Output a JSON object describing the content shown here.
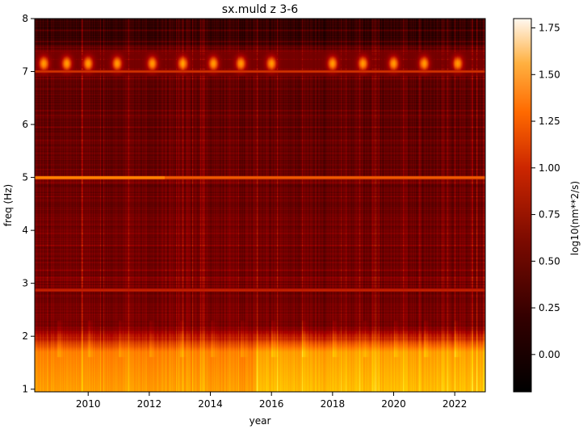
{
  "chart_data": {
    "type": "heatmap",
    "title": "sx.muld z 3-6",
    "xlabel": "year",
    "ylabel": "freq (Hz)",
    "colorbar_label": "log10(nm**2/s)",
    "colormap": "gist_heat",
    "xlim": [
      2008.25,
      2023.0
    ],
    "ylim": [
      0.95,
      8.0
    ],
    "x_ticks": [
      2010,
      2012,
      2014,
      2016,
      2018,
      2020,
      2022
    ],
    "y_ticks": [
      1,
      2,
      3,
      4,
      5,
      6,
      7,
      8
    ],
    "colorbar_range": [
      -0.2,
      1.8
    ],
    "colorbar_ticks": [
      0.0,
      0.25,
      0.5,
      0.75,
      1.0,
      1.25,
      1.5,
      1.75
    ],
    "colorbar_tick_labels": [
      "0.00",
      "0.25",
      "0.50",
      "0.75",
      "1.00",
      "1.25",
      "1.50",
      "1.75"
    ],
    "features": {
      "background_level": 0.35,
      "low_freq_band": {
        "freq_range": [
          0.95,
          1.7
        ],
        "level": 1.15,
        "increase_after_year": 2015.5
      },
      "lines": [
        {
          "freq": 5.0,
          "level": 0.95,
          "strongest_until_year": 2012.5
        },
        {
          "freq": 2.87,
          "level": 0.75
        },
        {
          "freq": 7.0,
          "level": 0.8
        }
      ],
      "seasonal_bursts": {
        "freq_range": [
          6.9,
          7.4
        ],
        "peak_level": 1.15,
        "years": [
          2008.55,
          2009.3,
          2010.0,
          2010.95,
          2012.1,
          2013.1,
          2014.1,
          2015.0,
          2016.0,
          2018.0,
          2019.0,
          2020.0,
          2021.0,
          2022.1
        ]
      }
    }
  }
}
